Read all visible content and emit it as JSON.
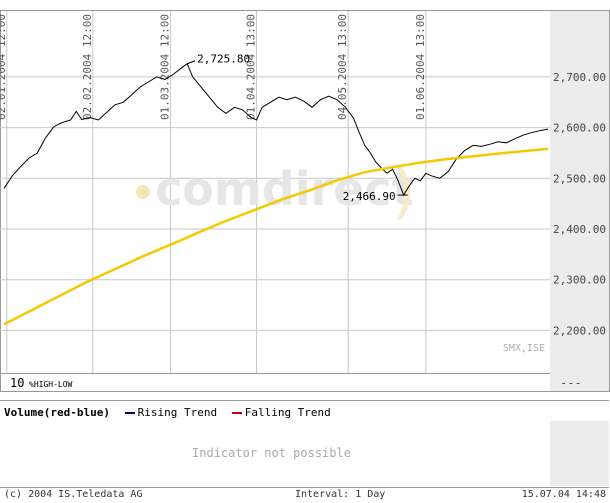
{
  "chart_data": {
    "type": "line",
    "y_ticks": [
      "2,200.00",
      "2,300.00",
      "2,400.00",
      "2,500.00",
      "2,600.00",
      "2,700.00"
    ],
    "y_tick_values": [
      2200,
      2300,
      2400,
      2500,
      2600,
      2700
    ],
    "ylim": [
      2116,
      2830
    ],
    "x_ticks": [
      {
        "label": "02.01.2004 12:00",
        "day": 1
      },
      {
        "label": "02.02.2004 12:00",
        "day": 32
      },
      {
        "label": "01.03.2004 12:00",
        "day": 60
      },
      {
        "label": "01.04.2004 13:00",
        "day": 91
      },
      {
        "label": "04.05.2004 13:00",
        "day": 124
      },
      {
        "label": "01.06.2004 13:00",
        "day": 152
      }
    ],
    "xlim": [
      0,
      196
    ],
    "grid": true,
    "series": [
      {
        "color": "#000000",
        "points": [
          [
            0,
            2480
          ],
          [
            3,
            2505
          ],
          [
            6,
            2523
          ],
          [
            9,
            2540
          ],
          [
            12,
            2550
          ],
          [
            15,
            2580
          ],
          [
            18,
            2602
          ],
          [
            21,
            2610
          ],
          [
            24,
            2615
          ],
          [
            26,
            2632
          ],
          [
            28,
            2616
          ],
          [
            31,
            2620
          ],
          [
            34,
            2615
          ],
          [
            37,
            2630
          ],
          [
            40,
            2645
          ],
          [
            43,
            2650
          ],
          [
            46,
            2665
          ],
          [
            49,
            2680
          ],
          [
            52,
            2690
          ],
          [
            55,
            2700
          ],
          [
            58,
            2695
          ],
          [
            61,
            2705
          ],
          [
            64,
            2718
          ],
          [
            66,
            2726
          ],
          [
            68,
            2700
          ],
          [
            71,
            2680
          ],
          [
            74,
            2660
          ],
          [
            77,
            2640
          ],
          [
            80,
            2628
          ],
          [
            83,
            2640
          ],
          [
            86,
            2635
          ],
          [
            89,
            2620
          ],
          [
            91,
            2615
          ],
          [
            93,
            2640
          ],
          [
            96,
            2650
          ],
          [
            99,
            2660
          ],
          [
            102,
            2655
          ],
          [
            105,
            2660
          ],
          [
            108,
            2652
          ],
          [
            111,
            2640
          ],
          [
            114,
            2655
          ],
          [
            117,
            2662
          ],
          [
            120,
            2655
          ],
          [
            123,
            2640
          ],
          [
            126,
            2618
          ],
          [
            128,
            2590
          ],
          [
            130,
            2565
          ],
          [
            132,
            2550
          ],
          [
            134,
            2532
          ],
          [
            136,
            2520
          ],
          [
            138,
            2510
          ],
          [
            140,
            2518
          ],
          [
            142,
            2495
          ],
          [
            144,
            2467
          ],
          [
            146,
            2485
          ],
          [
            148,
            2500
          ],
          [
            150,
            2495
          ],
          [
            152,
            2510
          ],
          [
            154,
            2505
          ],
          [
            157,
            2500
          ],
          [
            160,
            2513
          ],
          [
            163,
            2538
          ],
          [
            166,
            2555
          ],
          [
            169,
            2565
          ],
          [
            172,
            2563
          ],
          [
            175,
            2567
          ],
          [
            178,
            2572
          ],
          [
            181,
            2570
          ],
          [
            184,
            2578
          ],
          [
            187,
            2585
          ],
          [
            190,
            2590
          ],
          [
            193,
            2594
          ],
          [
            196,
            2597
          ]
        ]
      },
      {
        "color": "#f5c800",
        "points": [
          [
            0,
            2212
          ],
          [
            10,
            2240
          ],
          [
            20,
            2268
          ],
          [
            30,
            2296
          ],
          [
            40,
            2321
          ],
          [
            50,
            2346
          ],
          [
            60,
            2369
          ],
          [
            70,
            2393
          ],
          [
            80,
            2416
          ],
          [
            90,
            2437
          ],
          [
            100,
            2458
          ],
          [
            110,
            2476
          ],
          [
            120,
            2496
          ],
          [
            130,
            2512
          ],
          [
            140,
            2522
          ],
          [
            150,
            2531
          ],
          [
            160,
            2538
          ],
          [
            170,
            2544
          ],
          [
            180,
            2550
          ],
          [
            190,
            2555
          ],
          [
            196,
            2558
          ]
        ]
      }
    ],
    "annotations": [
      {
        "text": "2,725.80",
        "x": 66,
        "y": 2726,
        "anchor": "right"
      },
      {
        "text": "2,466.90",
        "x": 144,
        "y": 2467,
        "anchor": "left"
      }
    ]
  },
  "watermark": {
    "text": "comdirect",
    "color": "#e8e8e8"
  },
  "exchange_label": "SMX,ISE",
  "range_setting": {
    "value": "10",
    "label": "%HIGH-LOW"
  },
  "ind_menu_glyph": "---",
  "indicator": {
    "title": "Volume(red-blue)",
    "rising_label": "Rising Trend",
    "rising_color": "#00007f",
    "falling_label": "Falling Trend",
    "falling_color": "#cc0000",
    "message": "Indicator not possible"
  },
  "footer": {
    "copyright": "(c) 2004  IS.Teledata AG",
    "interval": "Interval: 1 Day",
    "timestamp": "15.07.04 14:48"
  },
  "colors": {
    "grid": "#c8c8c8",
    "axis_panel": "#ececec",
    "price_line": "#000000",
    "trend_line": "#f5c800"
  }
}
